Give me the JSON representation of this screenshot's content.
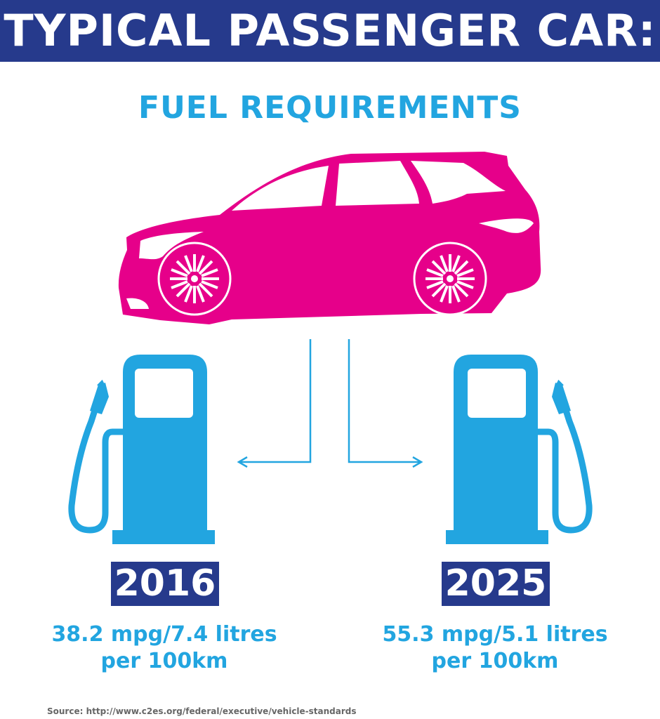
{
  "header": {
    "title": "TYPICAL PASSENGER CAR:"
  },
  "subtitle": "FUEL REQUIREMENTS",
  "colors": {
    "navy": "#263a8c",
    "blue": "#22a5e0",
    "pink": "#e6008a"
  },
  "icons": [
    "car-icon",
    "fuel-pump-icon",
    "arrow-left-icon",
    "arrow-right-icon"
  ],
  "left": {
    "year": "2016",
    "line1": "38.2 mpg/7.4 litres",
    "line2": "per 100km"
  },
  "right": {
    "year": "2025",
    "line1": "55.3 mpg/5.1 litres",
    "line2": "per 100km"
  },
  "source": "Source:  http://www.c2es.org/federal/executive/vehicle-standards"
}
